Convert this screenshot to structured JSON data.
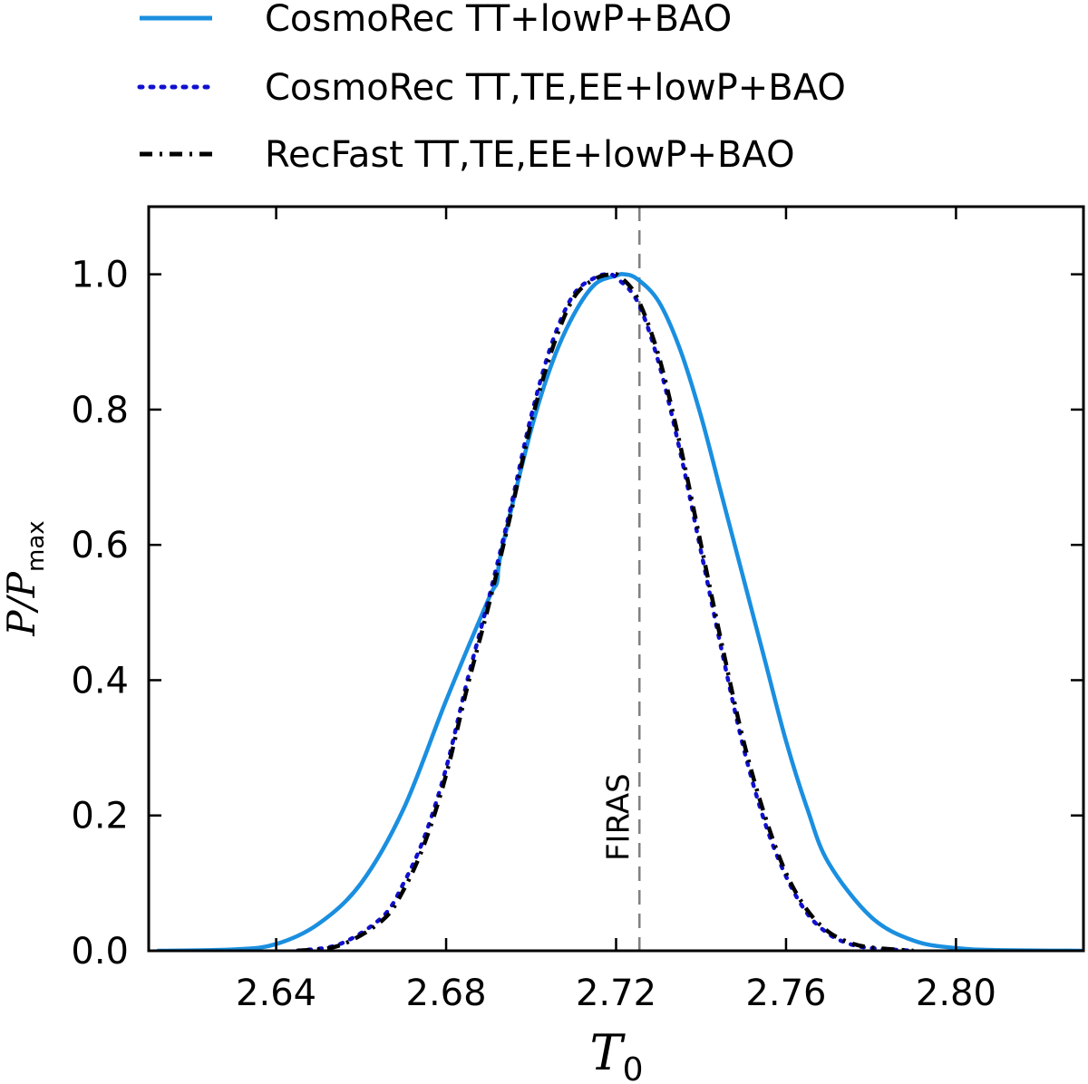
{
  "chart_data": {
    "type": "line",
    "xlabel": "T",
    "xlabel_sub": "0",
    "ylabel": "P/P",
    "ylabel_sub": "max",
    "xlim": [
      2.61,
      2.83
    ],
    "ylim": [
      0.0,
      1.1
    ],
    "xticks": [
      2.64,
      2.68,
      2.72,
      2.76,
      2.8
    ],
    "xtick_labels": [
      "2.64",
      "2.68",
      "2.72",
      "2.76",
      "2.80"
    ],
    "yticks": [
      0.0,
      0.2,
      0.4,
      0.6,
      0.8,
      1.0
    ],
    "ytick_labels": [
      "0.0",
      "0.2",
      "0.4",
      "0.6",
      "0.8",
      "1.0"
    ],
    "grid": false,
    "legend_position": "top-left, above plot",
    "reference_line": {
      "x": 2.7255,
      "label": "FIRAS",
      "color": "#808080",
      "style": "dashed"
    },
    "series": [
      {
        "name": "CosmoRec TT+lowP+BAO",
        "color": "#1a8fe0",
        "style": "solid",
        "x": [
          2.612,
          2.63,
          2.64,
          2.65,
          2.66,
          2.67,
          2.68,
          2.69,
          2.692,
          2.693,
          2.7,
          2.705,
          2.71,
          2.715,
          2.72,
          2.722,
          2.725,
          2.73,
          2.735,
          2.74,
          2.745,
          2.75,
          2.755,
          2.76,
          2.765,
          2.77,
          2.78,
          2.79,
          2.8,
          2.81,
          2.83
        ],
        "y": [
          0.0,
          0.002,
          0.01,
          0.04,
          0.1,
          0.21,
          0.37,
          0.52,
          0.545,
          0.59,
          0.77,
          0.87,
          0.94,
          0.985,
          0.998,
          1.0,
          0.993,
          0.96,
          0.89,
          0.79,
          0.67,
          0.55,
          0.43,
          0.31,
          0.21,
          0.13,
          0.05,
          0.015,
          0.004,
          0.001,
          0.0
        ]
      },
      {
        "name": "CosmoRec TT,TE,EE+lowP+BAO",
        "color": "#1010d0",
        "style": "dotted",
        "x": [
          2.645,
          2.655,
          2.665,
          2.67,
          2.675,
          2.68,
          2.685,
          2.69,
          2.695,
          2.7,
          2.705,
          2.71,
          2.715,
          2.718,
          2.72,
          2.725,
          2.73,
          2.735,
          2.74,
          2.745,
          2.75,
          2.755,
          2.76,
          2.765,
          2.77,
          2.775,
          2.78,
          2.79
        ],
        "y": [
          0.0,
          0.01,
          0.05,
          0.1,
          0.17,
          0.27,
          0.4,
          0.52,
          0.65,
          0.79,
          0.9,
          0.97,
          0.995,
          1.0,
          0.995,
          0.96,
          0.87,
          0.74,
          0.59,
          0.44,
          0.3,
          0.19,
          0.11,
          0.055,
          0.025,
          0.01,
          0.004,
          0.0
        ]
      },
      {
        "name": "RecFast TT,TE,EE+lowP+BAO",
        "color": "#000000",
        "style": "dashdot",
        "x": [
          2.645,
          2.655,
          2.665,
          2.67,
          2.675,
          2.68,
          2.685,
          2.69,
          2.695,
          2.7,
          2.705,
          2.71,
          2.715,
          2.719,
          2.721,
          2.725,
          2.73,
          2.735,
          2.74,
          2.745,
          2.75,
          2.755,
          2.76,
          2.765,
          2.77,
          2.775,
          2.78,
          2.79
        ],
        "y": [
          0.0,
          0.008,
          0.045,
          0.09,
          0.16,
          0.26,
          0.39,
          0.51,
          0.64,
          0.78,
          0.89,
          0.965,
          0.993,
          1.0,
          0.996,
          0.965,
          0.88,
          0.75,
          0.6,
          0.45,
          0.31,
          0.2,
          0.115,
          0.06,
          0.028,
          0.012,
          0.005,
          0.0
        ]
      }
    ]
  }
}
